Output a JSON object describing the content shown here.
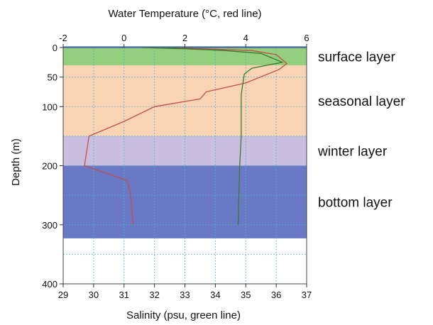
{
  "chart_data": {
    "type": "line",
    "title": "",
    "top_axis": {
      "label": "Water Temperature (°C, red line)",
      "range": [
        -2,
        6
      ],
      "ticks": [
        -2,
        0,
        2,
        4,
        6
      ],
      "tick_labels": [
        "-2",
        "0",
        "2",
        "4",
        "6"
      ]
    },
    "bottom_axis": {
      "label": "Salinity (psu, green line)",
      "range": [
        29,
        37
      ],
      "ticks": [
        29,
        30,
        31,
        32,
        33,
        34,
        35,
        36,
        37
      ],
      "tick_labels": [
        "29",
        "30",
        "31",
        "32",
        "33",
        "34",
        "35",
        "36",
        "37"
      ]
    },
    "y_axis": {
      "label": "Depth (m)",
      "range": [
        0,
        400
      ],
      "inverted": true,
      "ticks": [
        0,
        50,
        100,
        200,
        300,
        400
      ],
      "tick_labels": [
        "0",
        "50",
        "100",
        "200",
        "300",
        "400"
      ]
    },
    "grid": true,
    "layers": [
      {
        "name": "surface layer",
        "depth_range": [
          0,
          30
        ],
        "color": "#93cf7e"
      },
      {
        "name": "seasonal layer",
        "depth_range": [
          30,
          150
        ],
        "color": "#f8d4b4"
      },
      {
        "name": "winter layer",
        "depth_range": [
          150,
          200
        ],
        "color": "#c9bde0"
      },
      {
        "name": "bottom layer",
        "depth_range": [
          200,
          323
        ],
        "color": "#6a79c6"
      }
    ],
    "series": [
      {
        "name": "Water Temperature",
        "axis": "top",
        "color": "#c0504d",
        "points": [
          {
            "x": 1.0,
            "y": 0
          },
          {
            "x": 2.5,
            "y": 2
          },
          {
            "x": 4.2,
            "y": 5
          },
          {
            "x": 5.0,
            "y": 12
          },
          {
            "x": 5.35,
            "y": 27
          },
          {
            "x": 5.1,
            "y": 37
          },
          {
            "x": 4.0,
            "y": 60
          },
          {
            "x": 2.7,
            "y": 75
          },
          {
            "x": 2.5,
            "y": 87
          },
          {
            "x": 1.0,
            "y": 100
          },
          {
            "x": 0.0,
            "y": 125
          },
          {
            "x": -1.15,
            "y": 150
          },
          {
            "x": -1.3,
            "y": 200
          },
          {
            "x": 0.1,
            "y": 225
          },
          {
            "x": 0.2,
            "y": 245
          },
          {
            "x": 0.3,
            "y": 300
          }
        ]
      },
      {
        "name": "Salinity",
        "axis": "bottom",
        "color": "#3b7a2e",
        "points": [
          {
            "x": 31.6,
            "y": 0
          },
          {
            "x": 33.0,
            "y": 2
          },
          {
            "x": 34.3,
            "y": 5
          },
          {
            "x": 35.5,
            "y": 10
          },
          {
            "x": 36.2,
            "y": 25
          },
          {
            "x": 35.2,
            "y": 35
          },
          {
            "x": 34.95,
            "y": 45
          },
          {
            "x": 34.85,
            "y": 80
          },
          {
            "x": 34.85,
            "y": 150
          },
          {
            "x": 34.8,
            "y": 200
          },
          {
            "x": 34.75,
            "y": 300
          }
        ]
      }
    ]
  }
}
